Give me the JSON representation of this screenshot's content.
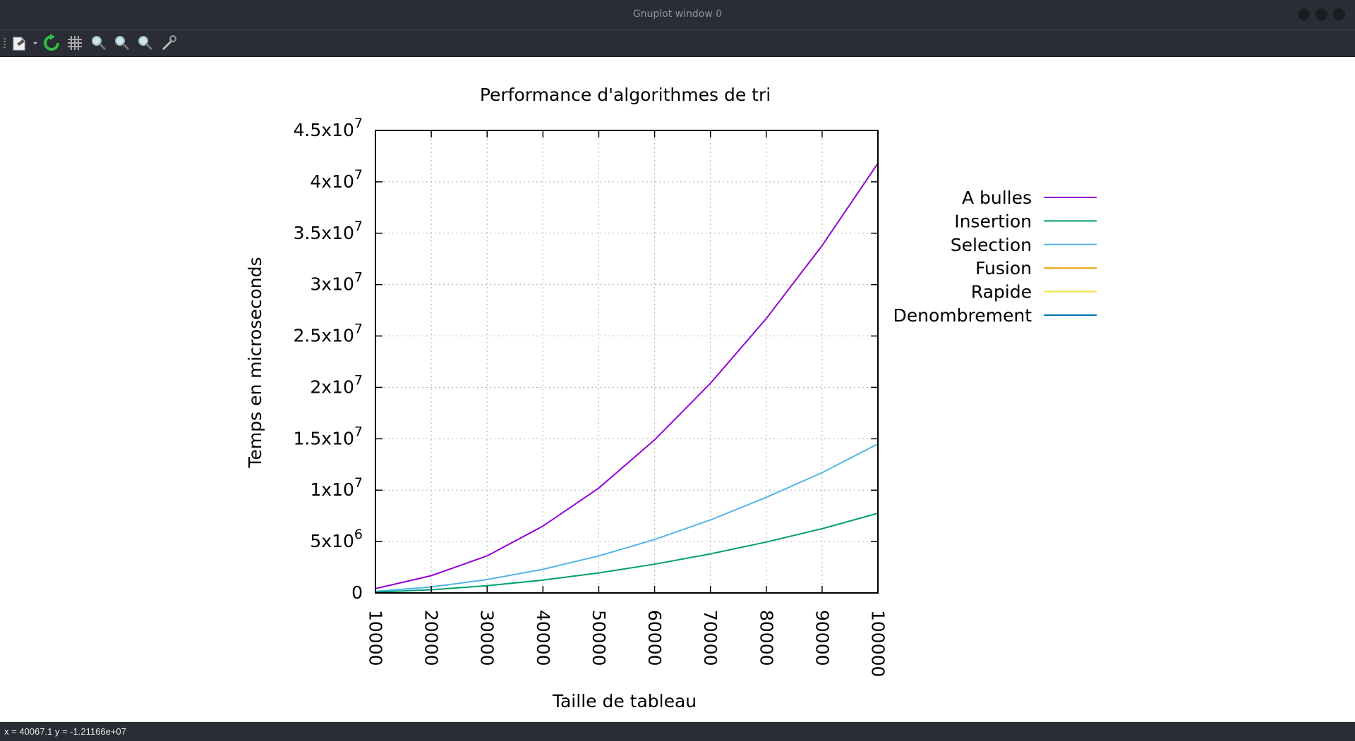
{
  "window": {
    "title": "Gnuplot window 0"
  },
  "toolbar": {
    "buttons": [
      {
        "name": "export-icon"
      },
      {
        "name": "replot-icon"
      },
      {
        "name": "grid-icon"
      },
      {
        "name": "zoom-previous-icon"
      },
      {
        "name": "zoom-next-icon"
      },
      {
        "name": "autoscale-icon"
      },
      {
        "name": "config-icon"
      }
    ]
  },
  "status": {
    "text": "x = 40067.1 y = -1.21166e+07"
  },
  "chart_data": {
    "type": "line",
    "title": "Performance d'algorithmes de tri",
    "xlabel": "Taille de tableau",
    "ylabel": "Temps en microseconds",
    "x": [
      10000,
      20000,
      30000,
      40000,
      50000,
      60000,
      70000,
      80000,
      90000,
      100000
    ],
    "xlim": [
      10000,
      100000
    ],
    "ylim": [
      0,
      45000000
    ],
    "x_ticks": [
      "10000",
      "20000",
      "30000",
      "40000",
      "50000",
      "60000",
      "70000",
      "80000",
      "90000",
      "100000"
    ],
    "y_ticks": [
      {
        "value": 0,
        "mant": "0",
        "exp": ""
      },
      {
        "value": 5000000,
        "mant": "5x10",
        "exp": "6"
      },
      {
        "value": 10000000,
        "mant": "1x10",
        "exp": "7"
      },
      {
        "value": 15000000,
        "mant": "1.5x10",
        "exp": "7"
      },
      {
        "value": 20000000,
        "mant": "2x10",
        "exp": "7"
      },
      {
        "value": 25000000,
        "mant": "2.5x10",
        "exp": "7"
      },
      {
        "value": 30000000,
        "mant": "3x10",
        "exp": "7"
      },
      {
        "value": 35000000,
        "mant": "3.5x10",
        "exp": "7"
      },
      {
        "value": 40000000,
        "mant": "4x10",
        "exp": "7"
      },
      {
        "value": 45000000,
        "mant": "4.5x10",
        "exp": "7"
      }
    ],
    "grid": true,
    "legend_position": "outside-right-top",
    "series": [
      {
        "name": "A bulles",
        "color": "#9400d3",
        "values": [
          420000,
          1680000,
          3600000,
          6500000,
          10200000,
          14900000,
          20400000,
          26700000,
          33800000,
          41800000
        ]
      },
      {
        "name": "Insertion",
        "color": "#009e73",
        "values": [
          80000,
          310000,
          700000,
          1250000,
          1950000,
          2800000,
          3800000,
          4950000,
          6250000,
          7750000
        ]
      },
      {
        "name": "Selection",
        "color": "#56b4e9",
        "values": [
          150000,
          580000,
          1300000,
          2300000,
          3600000,
          5200000,
          7100000,
          9300000,
          11700000,
          14500000
        ]
      },
      {
        "name": "Fusion",
        "color": "#e69f00",
        "values": [
          1000,
          2000,
          3000,
          4000,
          5000,
          6000,
          7000,
          8000,
          9000,
          10000
        ]
      },
      {
        "name": "Rapide",
        "color": "#f0e442",
        "values": [
          700,
          1500,
          2300,
          3100,
          3900,
          4700,
          5500,
          6300,
          7100,
          7900
        ]
      },
      {
        "name": "Denombrement",
        "color": "#0072b2",
        "values": [
          100,
          200,
          300,
          400,
          500,
          600,
          700,
          800,
          900,
          1000
        ]
      }
    ]
  }
}
